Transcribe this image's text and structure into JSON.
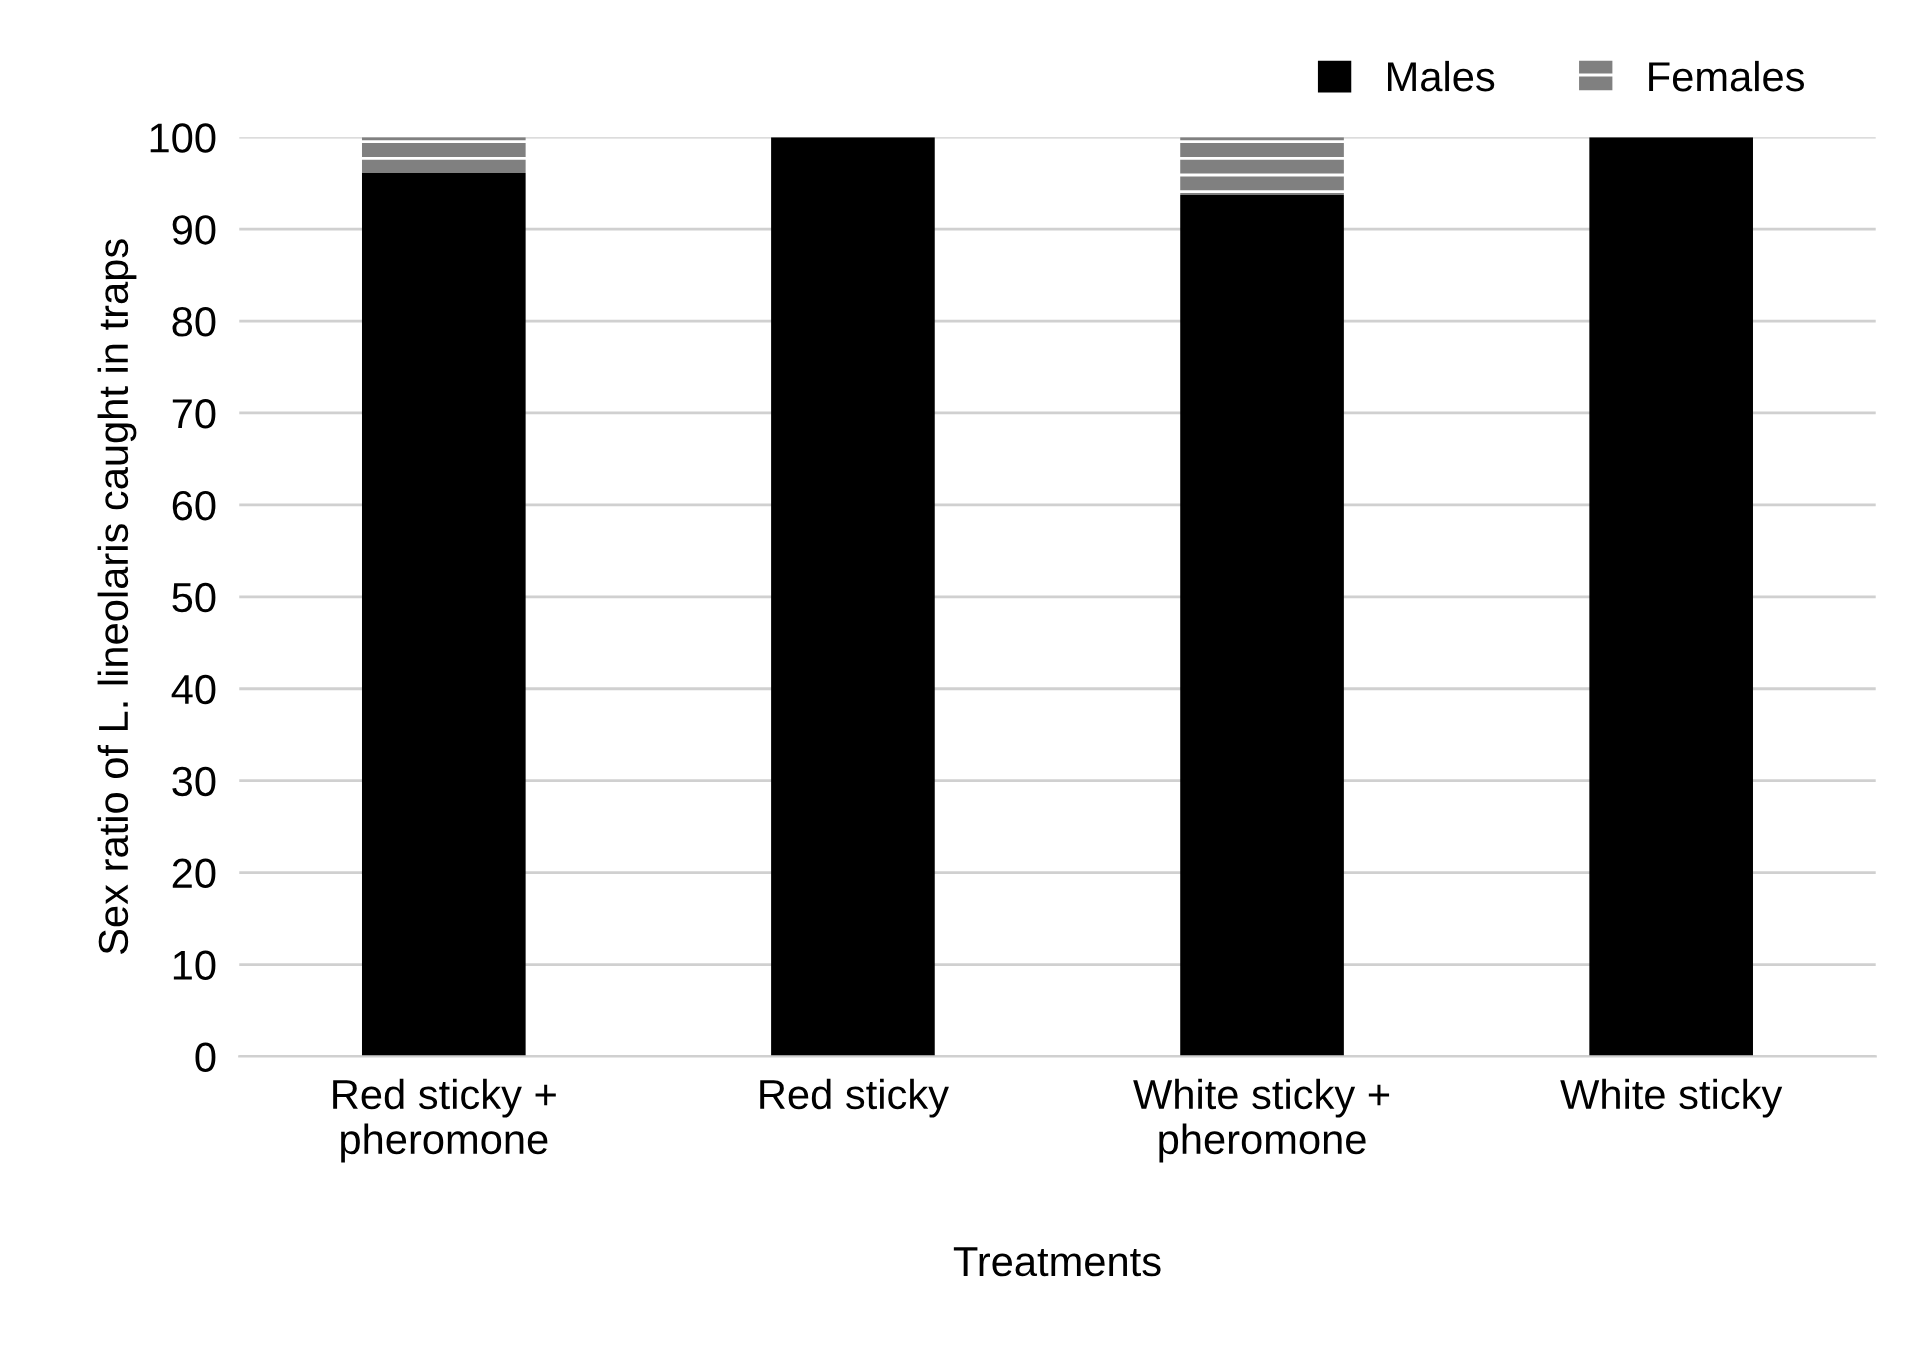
{
  "chart_data": {
    "type": "bar",
    "stacked": true,
    "xlabel": "Treatments",
    "ylabel": "Sex ratio of L. lineolaris caught in traps",
    "categories": [
      "Red sticky +\npheromone",
      "Red sticky",
      "White sticky +\npheromone",
      "White sticky"
    ],
    "series": [
      {
        "name": "Males",
        "color": "#000000",
        "values": [
          96.1,
          100,
          93.7,
          100
        ]
      },
      {
        "name": "Females",
        "color": "#808080",
        "values": [
          3.9,
          0,
          6.3,
          0
        ]
      }
    ],
    "ylim": [
      0,
      100
    ],
    "yticks": [
      0,
      10,
      20,
      30,
      40,
      50,
      60,
      70,
      80,
      90,
      100
    ],
    "grid": "y",
    "legend": "top right"
  }
}
